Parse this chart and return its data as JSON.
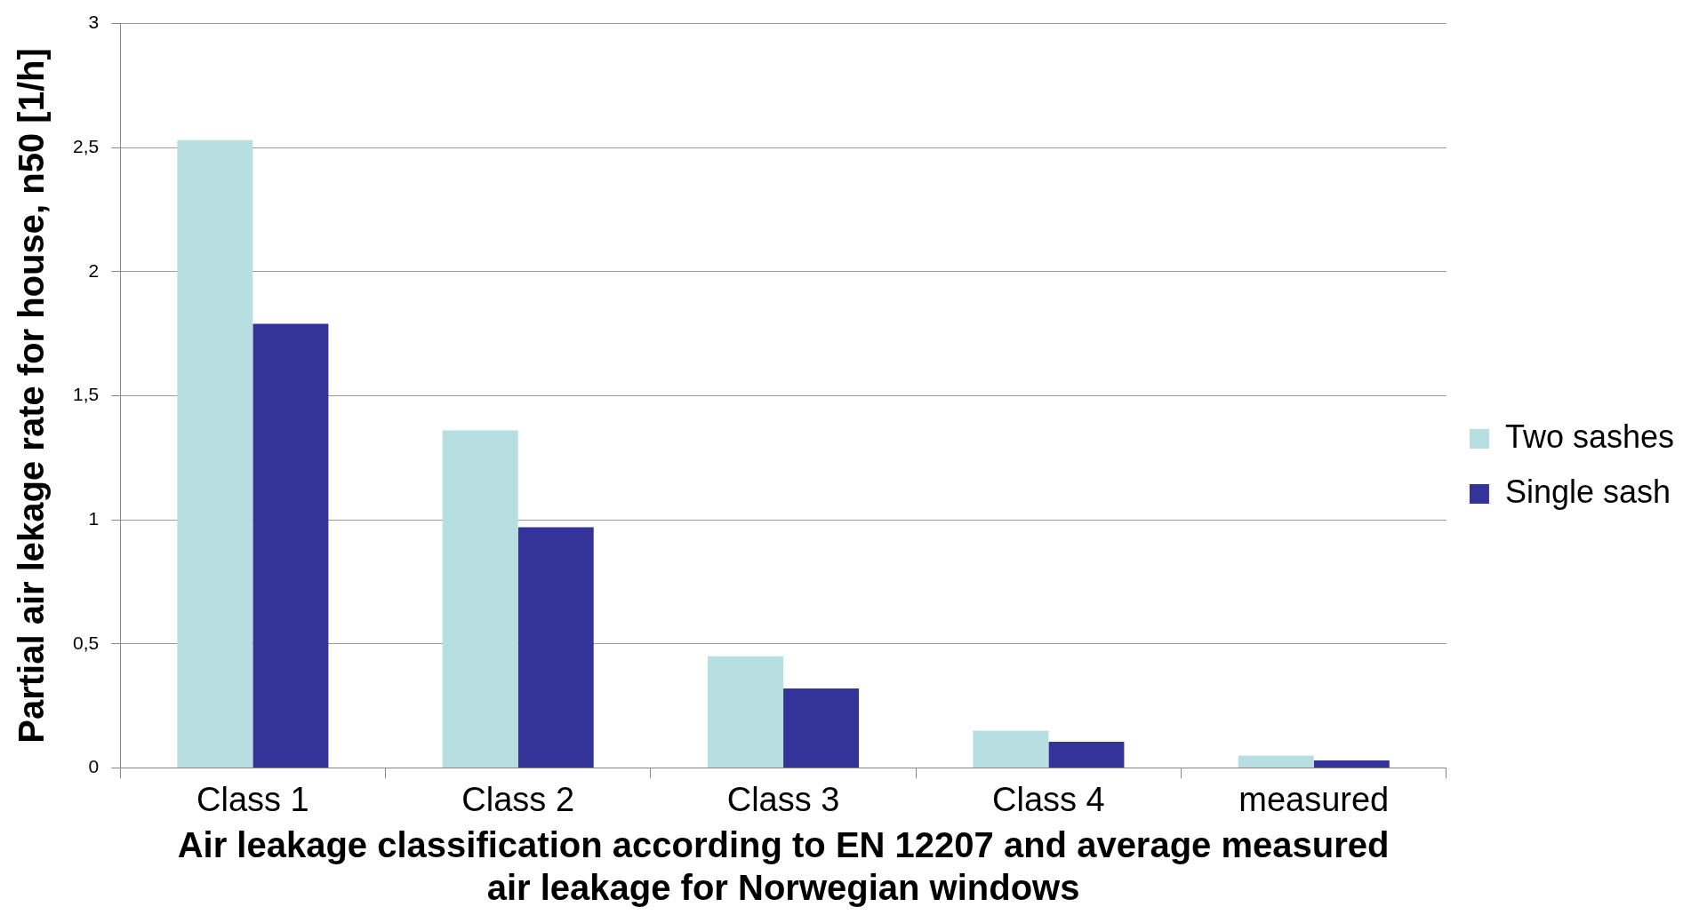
{
  "chart_data": {
    "type": "bar",
    "xlabel": "Air leakage classification according to EN 12207 and average measured air leakage for Norwegian windows",
    "ylabel": "Partial air lekage rate for house, n50 [1/h]",
    "categories": [
      "Class 1",
      "Class 2",
      "Class 3",
      "Class 4",
      "measured"
    ],
    "series": [
      {
        "name": "Two sashes",
        "color": "#b7dfe1",
        "values": [
          2.53,
          1.36,
          0.45,
          0.15,
          0.05
        ]
      },
      {
        "name": "Single sash",
        "color": "#333399",
        "values": [
          1.79,
          0.97,
          0.32,
          0.105,
          0.03
        ]
      }
    ],
    "ylim": [
      0,
      3
    ],
    "yticks": [
      0,
      {
        "value": 0.5,
        "label": "0,5"
      },
      1,
      {
        "value": 1.5,
        "label": "1,5"
      },
      2,
      {
        "value": 2.5,
        "label": "2,5"
      },
      3
    ],
    "grid": "y",
    "legend": "right"
  }
}
